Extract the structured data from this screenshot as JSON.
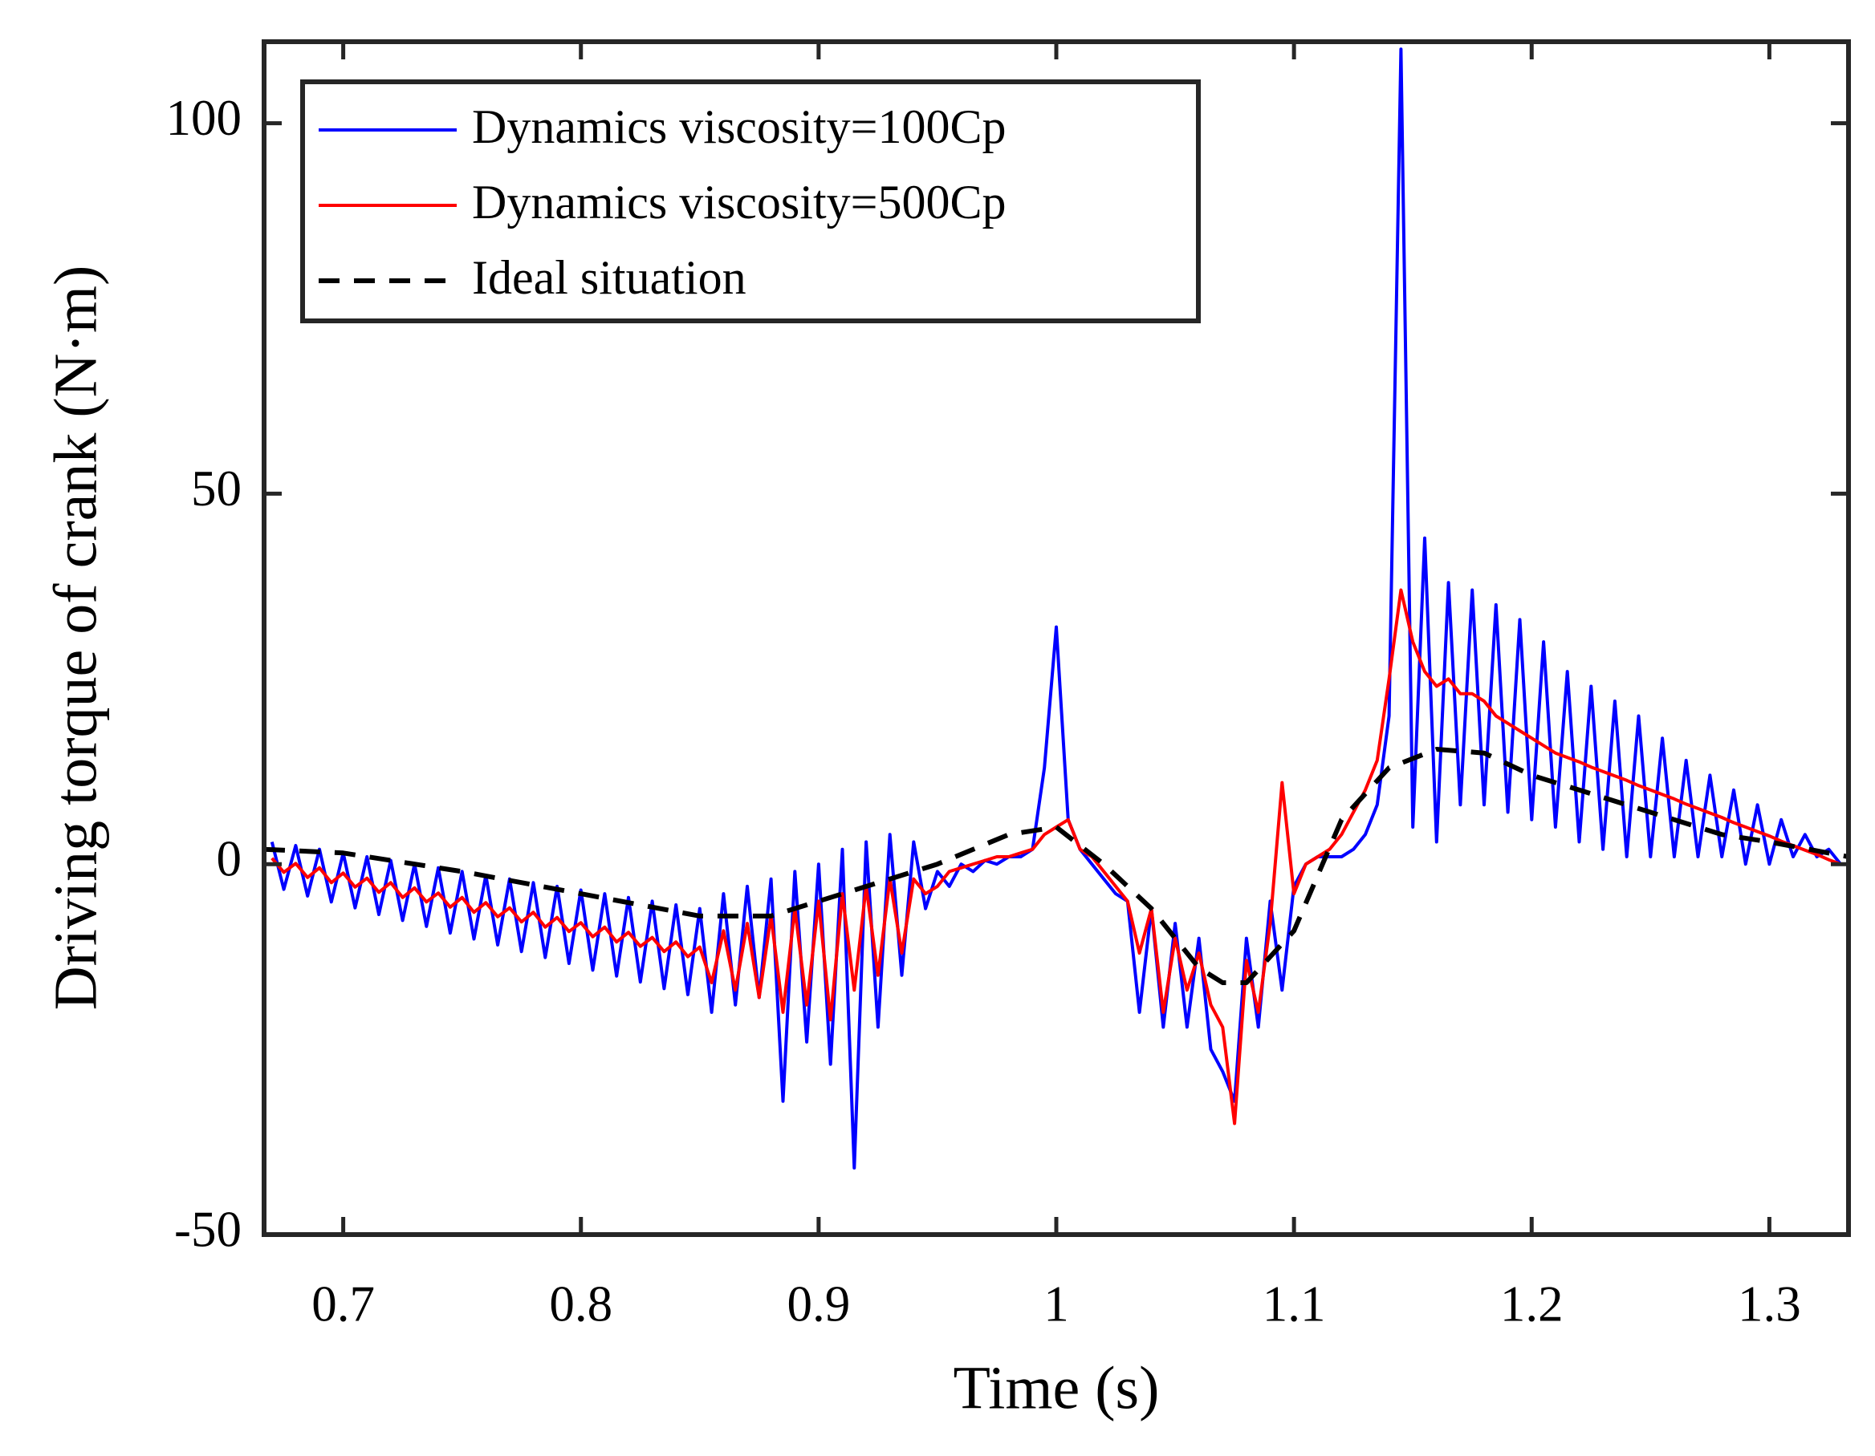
{
  "chart_data": {
    "type": "line",
    "xlabel": "Time (s)",
    "ylabel": "Driving torque of crank (N·m)",
    "xlim": [
      0.6667,
      1.3333
    ],
    "ylim": [
      -50,
      111
    ],
    "xticks": [
      0.7,
      0.8,
      0.9,
      1,
      1.1,
      1.2,
      1.3
    ],
    "yticks": [
      -50,
      0,
      50,
      100
    ],
    "grid": false,
    "legend": "upper left",
    "series": [
      {
        "name": "Dynamics viscosity=100Cp",
        "color": "#0000ff",
        "line_style": "solid",
        "x": [
          0.67,
          0.675,
          0.68,
          0.685,
          0.69,
          0.695,
          0.7,
          0.705,
          0.71,
          0.715,
          0.72,
          0.725,
          0.73,
          0.735,
          0.74,
          0.745,
          0.75,
          0.755,
          0.76,
          0.765,
          0.77,
          0.775,
          0.78,
          0.785,
          0.79,
          0.795,
          0.8,
          0.805,
          0.81,
          0.815,
          0.82,
          0.825,
          0.83,
          0.835,
          0.84,
          0.845,
          0.85,
          0.855,
          0.86,
          0.865,
          0.87,
          0.875,
          0.88,
          0.885,
          0.89,
          0.895,
          0.9,
          0.905,
          0.91,
          0.915,
          0.92,
          0.925,
          0.93,
          0.935,
          0.94,
          0.945,
          0.95,
          0.955,
          0.96,
          0.965,
          0.97,
          0.975,
          0.98,
          0.985,
          0.99,
          0.995,
          1.0,
          1.005,
          1.01,
          1.015,
          1.02,
          1.025,
          1.03,
          1.035,
          1.04,
          1.045,
          1.05,
          1.055,
          1.06,
          1.065,
          1.07,
          1.075,
          1.08,
          1.085,
          1.09,
          1.095,
          1.1,
          1.105,
          1.11,
          1.115,
          1.12,
          1.125,
          1.13,
          1.135,
          1.14,
          1.145,
          1.15,
          1.155,
          1.16,
          1.165,
          1.17,
          1.175,
          1.18,
          1.185,
          1.19,
          1.195,
          1.2,
          1.205,
          1.21,
          1.215,
          1.22,
          1.225,
          1.23,
          1.235,
          1.24,
          1.245,
          1.25,
          1.255,
          1.26,
          1.265,
          1.27,
          1.275,
          1.28,
          1.285,
          1.29,
          1.295,
          1.3,
          1.305,
          1.31,
          1.315,
          1.32,
          1.325,
          1.33
        ],
        "values": [
          3,
          -3.4,
          2.5,
          -4.3,
          2.0,
          -5.1,
          1.5,
          -5.9,
          1.0,
          -6.8,
          0.5,
          -7.6,
          0,
          -8.4,
          -0.5,
          -9.3,
          -1.0,
          -10.1,
          -1.5,
          -10.9,
          -2.0,
          -11.8,
          -2.5,
          -12.6,
          -3,
          -13.4,
          -3.5,
          -14.3,
          -4.0,
          -15.1,
          -4.5,
          -15.9,
          -5.0,
          -16.8,
          -5.5,
          -17.6,
          -6,
          -20,
          -4,
          -19,
          -3,
          -18,
          -2,
          -32,
          -1,
          -24,
          0,
          -27,
          2,
          -41,
          3,
          -22,
          4,
          -15,
          3,
          -6,
          -1,
          -3,
          0,
          -1,
          0.5,
          0,
          1,
          1,
          2,
          13,
          32,
          6,
          2,
          0,
          -2,
          -4,
          -5,
          -20,
          -6,
          -22,
          -8,
          -22,
          -10,
          -25,
          -28,
          -32,
          -10,
          -22,
          -5,
          -17,
          -3,
          0,
          1,
          1,
          1,
          2,
          4,
          8,
          20,
          110,
          5,
          44,
          3,
          38,
          8,
          37,
          8,
          35,
          7,
          33,
          6,
          30,
          5,
          26,
          3,
          24,
          2,
          22,
          1,
          20,
          1,
          17,
          1,
          14,
          1,
          12,
          1,
          10,
          0,
          8,
          0,
          6,
          1,
          4,
          1,
          2,
          0
        ]
      },
      {
        "name": "Dynamics viscosity=500Cp",
        "color": "#ff0000",
        "line_style": "solid",
        "x": [
          0.67,
          0.675,
          0.68,
          0.685,
          0.69,
          0.695,
          0.7,
          0.705,
          0.71,
          0.715,
          0.72,
          0.725,
          0.73,
          0.735,
          0.74,
          0.745,
          0.75,
          0.755,
          0.76,
          0.765,
          0.77,
          0.775,
          0.78,
          0.785,
          0.79,
          0.795,
          0.8,
          0.805,
          0.81,
          0.815,
          0.82,
          0.825,
          0.83,
          0.835,
          0.84,
          0.845,
          0.85,
          0.855,
          0.86,
          0.865,
          0.87,
          0.875,
          0.88,
          0.885,
          0.89,
          0.895,
          0.9,
          0.905,
          0.91,
          0.915,
          0.92,
          0.925,
          0.93,
          0.935,
          0.94,
          0.945,
          0.95,
          0.955,
          0.96,
          0.965,
          0.97,
          0.975,
          0.98,
          0.985,
          0.99,
          0.995,
          1.0,
          1.005,
          1.01,
          1.015,
          1.02,
          1.025,
          1.03,
          1.035,
          1.04,
          1.045,
          1.05,
          1.055,
          1.06,
          1.065,
          1.07,
          1.075,
          1.08,
          1.085,
          1.09,
          1.095,
          1.1,
          1.105,
          1.11,
          1.115,
          1.12,
          1.125,
          1.13,
          1.135,
          1.14,
          1.145,
          1.15,
          1.155,
          1.16,
          1.165,
          1.17,
          1.175,
          1.18,
          1.185,
          1.19,
          1.195,
          1.2,
          1.205,
          1.21,
          1.215,
          1.22,
          1.225,
          1.23,
          1.235,
          1.24,
          1.245,
          1.25,
          1.255,
          1.26,
          1.265,
          1.27,
          1.275,
          1.28,
          1.285,
          1.29,
          1.295,
          1.3,
          1.305,
          1.31,
          1.315,
          1.32,
          1.325,
          1.33
        ],
        "values": [
          0.8,
          -1.1,
          0.1,
          -1.8,
          -0.5,
          -2.5,
          -1.2,
          -3.1,
          -1.9,
          -3.8,
          -2.5,
          -4.5,
          -3.2,
          -5.1,
          -3.9,
          -5.8,
          -4.5,
          -6.5,
          -5.2,
          -7.1,
          -5.9,
          -7.8,
          -6.5,
          -8.5,
          -7.2,
          -9.1,
          -7.9,
          -9.8,
          -8.5,
          -10.5,
          -9.2,
          -11.1,
          -9.9,
          -11.8,
          -10.5,
          -12.5,
          -11.2,
          -16,
          -9,
          -17,
          -8,
          -18,
          -7,
          -20,
          -6,
          -19,
          -5,
          -21,
          -4,
          -17,
          -3,
          -15,
          -2,
          -12,
          -2,
          -4,
          -3,
          -1,
          -0.5,
          0,
          0.5,
          1,
          1,
          1.5,
          2,
          4,
          5,
          6,
          2,
          1,
          -1,
          -3,
          -5,
          -12,
          -6,
          -20,
          -10,
          -17,
          -12,
          -19,
          -22,
          -35,
          -13,
          -20,
          -8,
          11,
          -4,
          0,
          1,
          2,
          4,
          7,
          10,
          14,
          25,
          37,
          30,
          26,
          24,
          25,
          23,
          23,
          22,
          20,
          19,
          18,
          17,
          16,
          15,
          14.4,
          13.8,
          13.1,
          12.5,
          11.9,
          11.3,
          10.6,
          10.0,
          9.4,
          8.8,
          8.1,
          7.5,
          6.9,
          6.3,
          5.6,
          5.0,
          4.4,
          3.8,
          3.1,
          2.5,
          1.9,
          1.3,
          0.6,
          0
        ]
      },
      {
        "name": "Ideal situation",
        "color": "#000000",
        "line_style": "dashed",
        "x": [
          0.6667,
          0.7,
          0.75,
          0.8,
          0.85,
          0.88,
          0.9,
          0.95,
          0.98,
          1.0,
          1.02,
          1.04,
          1.06,
          1.07,
          1.08,
          1.1,
          1.12,
          1.14,
          1.16,
          1.18,
          1.2,
          1.22,
          1.25,
          1.28,
          1.3,
          1.3333
        ],
        "values": [
          2,
          1.5,
          -1,
          -4,
          -7,
          -7,
          -5,
          0,
          4,
          5,
          0,
          -6,
          -14,
          -16,
          -16,
          -9,
          6,
          13,
          15.5,
          15,
          12,
          10,
          7,
          4,
          3,
          1
        ]
      }
    ]
  }
}
